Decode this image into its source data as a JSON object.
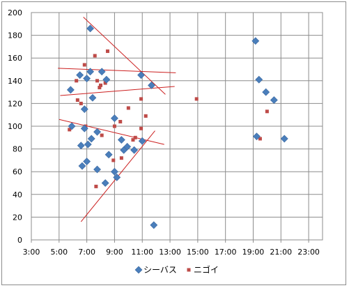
{
  "chart_data": {
    "type": "scatter",
    "title": "",
    "xlabel": "",
    "ylabel": "",
    "x_unit": "time",
    "xlim": [
      "3:00",
      "24:00"
    ],
    "ylim": [
      0,
      200
    ],
    "x_ticks": [
      "3:00",
      "5:00",
      "7:00",
      "9:00",
      "11:00",
      "13:00",
      "15:00",
      "17:00",
      "19:00",
      "21:00",
      "23:00"
    ],
    "y_ticks": [
      0,
      20,
      40,
      60,
      80,
      100,
      120,
      140,
      160,
      180,
      200
    ],
    "grid": true,
    "legend_position": "bottom",
    "series": [
      {
        "name": "シーバス",
        "marker": "diamond",
        "color": "#4a7ebb",
        "points": [
          {
            "x": "5:50",
            "y": 132
          },
          {
            "x": "5:55",
            "y": 100
          },
          {
            "x": "6:30",
            "y": 145
          },
          {
            "x": "6:40",
            "y": 65
          },
          {
            "x": "6:35",
            "y": 83
          },
          {
            "x": "6:50",
            "y": 115
          },
          {
            "x": "6:50",
            "y": 98
          },
          {
            "x": "7:00",
            "y": 142
          },
          {
            "x": "7:00",
            "y": 69
          },
          {
            "x": "7:05",
            "y": 84
          },
          {
            "x": "7:15",
            "y": 148
          },
          {
            "x": "7:15",
            "y": 186
          },
          {
            "x": "7:20",
            "y": 89
          },
          {
            "x": "7:25",
            "y": 125
          },
          {
            "x": "7:45",
            "y": 95
          },
          {
            "x": "7:45",
            "y": 62
          },
          {
            "x": "8:05",
            "y": 148
          },
          {
            "x": "8:20",
            "y": 50
          },
          {
            "x": "8:25",
            "y": 141
          },
          {
            "x": "8:35",
            "y": 75
          },
          {
            "x": "9:00",
            "y": 107
          },
          {
            "x": "9:00",
            "y": 60
          },
          {
            "x": "9:10",
            "y": 55
          },
          {
            "x": "9:30",
            "y": 88
          },
          {
            "x": "9:40",
            "y": 79
          },
          {
            "x": "9:55",
            "y": 82
          },
          {
            "x": "10:25",
            "y": 79
          },
          {
            "x": "10:55",
            "y": 145
          },
          {
            "x": "11:00",
            "y": 87
          },
          {
            "x": "11:40",
            "y": 136
          },
          {
            "x": "11:50",
            "y": 13
          },
          {
            "x": "19:10",
            "y": 175
          },
          {
            "x": "19:15",
            "y": 91
          },
          {
            "x": "19:25",
            "y": 141
          },
          {
            "x": "19:55",
            "y": 130
          },
          {
            "x": "20:30",
            "y": 123
          },
          {
            "x": "21:15",
            "y": 89
          }
        ]
      },
      {
        "name": "ニゴイ",
        "marker": "square",
        "color": "#be4b48",
        "points": [
          {
            "x": "5:45",
            "y": 97
          },
          {
            "x": "6:15",
            "y": 140
          },
          {
            "x": "6:20",
            "y": 123
          },
          {
            "x": "6:35",
            "y": 120
          },
          {
            "x": "6:50",
            "y": 154
          },
          {
            "x": "6:55",
            "y": 100
          },
          {
            "x": "7:35",
            "y": 162
          },
          {
            "x": "7:40",
            "y": 47
          },
          {
            "x": "7:45",
            "y": 140
          },
          {
            "x": "7:55",
            "y": 134
          },
          {
            "x": "8:00",
            "y": 136
          },
          {
            "x": "8:05",
            "y": 92
          },
          {
            "x": "8:20",
            "y": 138
          },
          {
            "x": "8:30",
            "y": 166
          },
          {
            "x": "8:55",
            "y": 70
          },
          {
            "x": "9:00",
            "y": 100
          },
          {
            "x": "9:25",
            "y": 104
          },
          {
            "x": "9:30",
            "y": 72
          },
          {
            "x": "10:00",
            "y": 116
          },
          {
            "x": "10:20",
            "y": 88
          },
          {
            "x": "10:30",
            "y": 90
          },
          {
            "x": "10:55",
            "y": 124
          },
          {
            "x": "10:55",
            "y": 98
          },
          {
            "x": "11:15",
            "y": 109
          },
          {
            "x": "14:55",
            "y": 124
          },
          {
            "x": "19:30",
            "y": 89
          },
          {
            "x": "20:00",
            "y": 113
          }
        ]
      }
    ],
    "trend_lines": [
      {
        "color": "#cc1f1f",
        "from": {
          "x": "4:55",
          "y": 151
        },
        "to": {
          "x": "13:25",
          "y": 147
        }
      },
      {
        "color": "#cc1f1f",
        "from": {
          "x": "5:05",
          "y": 127
        },
        "to": {
          "x": "13:20",
          "y": 135
        }
      },
      {
        "color": "#cc1f1f",
        "from": {
          "x": "5:00",
          "y": 106
        },
        "to": {
          "x": "12:35",
          "y": 84
        }
      },
      {
        "color": "#cc1f1f",
        "from": {
          "x": "6:45",
          "y": 196
        },
        "to": {
          "x": "12:40",
          "y": 128
        }
      },
      {
        "color": "#cc1f1f",
        "from": {
          "x": "6:35",
          "y": 16
        },
        "to": {
          "x": "11:55",
          "y": 96
        }
      }
    ]
  }
}
